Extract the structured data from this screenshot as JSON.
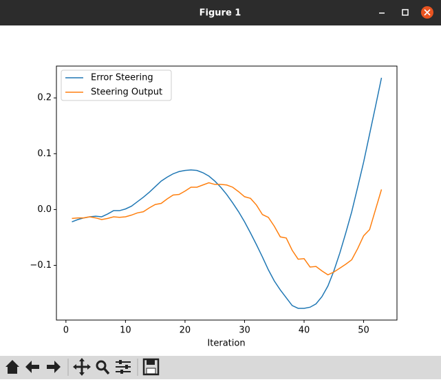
{
  "window_title": "Figure 1",
  "chart_data": {
    "type": "line",
    "xlabel": "Iteration",
    "x": [
      1,
      2,
      3,
      4,
      5,
      6,
      7,
      8,
      9,
      10,
      11,
      12,
      13,
      14,
      15,
      16,
      17,
      18,
      19,
      20,
      21,
      22,
      23,
      24,
      25,
      26,
      27,
      28,
      29,
      30,
      31,
      32,
      33,
      34,
      35,
      36,
      37,
      38,
      39,
      40,
      41,
      42,
      43,
      44,
      45,
      46,
      47,
      48,
      49,
      50,
      51,
      52,
      53
    ],
    "series": [
      {
        "name": "Error Steering",
        "color": "#1f77b4",
        "values": [
          -0.022,
          -0.018,
          -0.015,
          -0.013,
          -0.012,
          -0.013,
          -0.008,
          -0.002,
          -0.002,
          0.001,
          0.006,
          0.014,
          0.022,
          0.031,
          0.041,
          0.051,
          0.058,
          0.064,
          0.068,
          0.07,
          0.071,
          0.07,
          0.066,
          0.06,
          0.051,
          0.04,
          0.027,
          0.012,
          -0.004,
          -0.022,
          -0.042,
          -0.063,
          -0.085,
          -0.108,
          -0.128,
          -0.144,
          -0.158,
          -0.172,
          -0.177,
          -0.177,
          -0.175,
          -0.169,
          -0.156,
          -0.137,
          -0.11,
          -0.078,
          -0.042,
          -0.004,
          0.04,
          0.085,
          0.135,
          0.185,
          0.236
        ]
      },
      {
        "name": "Steering Output",
        "color": "#ff7f0e",
        "values": [
          -0.016,
          -0.015,
          -0.015,
          -0.013,
          -0.015,
          -0.018,
          -0.016,
          -0.013,
          -0.014,
          -0.013,
          -0.01,
          -0.006,
          -0.004,
          0.003,
          0.009,
          0.011,
          0.019,
          0.026,
          0.027,
          0.033,
          0.04,
          0.04,
          0.044,
          0.048,
          0.045,
          0.045,
          0.044,
          0.04,
          0.032,
          0.023,
          0.02,
          0.008,
          -0.009,
          -0.014,
          -0.03,
          -0.049,
          -0.051,
          -0.073,
          -0.089,
          -0.088,
          -0.103,
          -0.102,
          -0.11,
          -0.117,
          -0.112,
          -0.105,
          -0.098,
          -0.09,
          -0.07,
          -0.047,
          -0.036,
          0.0,
          0.036
        ]
      }
    ],
    "xlim": [
      -1.6,
      55.6
    ],
    "xticks": [
      0,
      10,
      20,
      30,
      40,
      50
    ],
    "ylim": [
      -0.198,
      0.257
    ],
    "yticks": [
      {
        "value": -0.1,
        "label": "−0.1"
      },
      {
        "value": 0,
        "label": "0.0"
      },
      0.1,
      0.2
    ],
    "legend": "upper left"
  }
}
